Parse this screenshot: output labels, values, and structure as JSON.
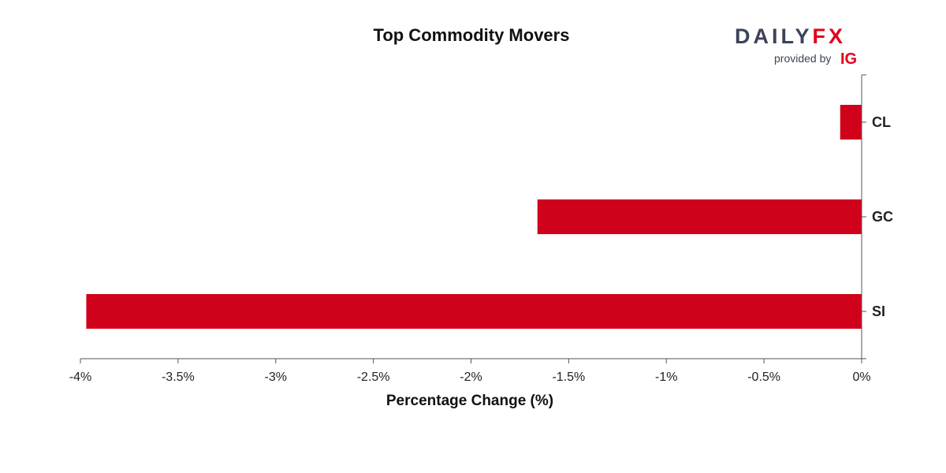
{
  "brand": {
    "name": "DAILYFX",
    "provided_by": "provided by",
    "partner": "IG",
    "colors": {
      "dark": "#3b4459",
      "accent": "#e2001a"
    }
  },
  "chart_data": {
    "type": "bar",
    "orientation": "horizontal",
    "title": "Top Commodity Movers",
    "xlabel": "Percentage Change (%)",
    "ylabel": "",
    "categories": [
      "CL",
      "GC",
      "SI"
    ],
    "values": [
      -0.11,
      -1.66,
      -3.97
    ],
    "xlim": [
      -4,
      0
    ],
    "x_ticks": [
      -4,
      -3.5,
      -3,
      -2.5,
      -2,
      -1.5,
      -1,
      -0.5,
      0
    ],
    "x_tick_labels": [
      "-4%",
      "-3.5%",
      "-3%",
      "-2.5%",
      "-2%",
      "-1.5%",
      "-1%",
      "-0.5%",
      "0%"
    ],
    "bar_color": "#d0021b",
    "grid": false,
    "legend": "none"
  }
}
